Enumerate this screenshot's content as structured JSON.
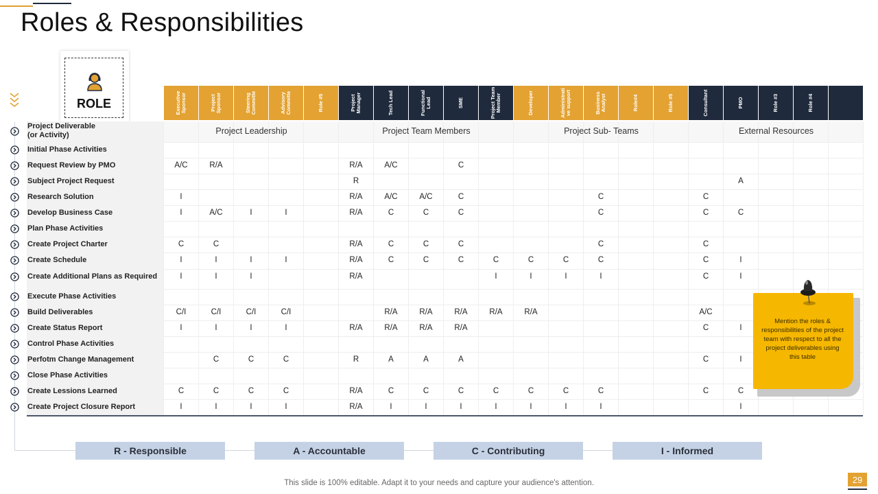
{
  "title": "Roles & Responsibilities",
  "role_label": "ROLE",
  "columns": [
    {
      "label": "Executive Sponsor",
      "color": "#e3a232"
    },
    {
      "label": "Project Sponsor",
      "color": "#e3a232"
    },
    {
      "label": "Steering Committe",
      "color": "#e3a232"
    },
    {
      "label": "Advisory Committe",
      "color": "#e3a232"
    },
    {
      "label": "Role #5",
      "color": "#e3a232"
    },
    {
      "label": "Project Manager",
      "color": "#1f2a3c"
    },
    {
      "label": "Tech Lead",
      "color": "#1f2a3c"
    },
    {
      "label": "Functional Lead",
      "color": "#1f2a3c"
    },
    {
      "label": "SME",
      "color": "#1f2a3c"
    },
    {
      "label": "Project Team Member",
      "color": "#1f2a3c"
    },
    {
      "label": "Developer",
      "color": "#e3a232"
    },
    {
      "label": "Administrati ve support",
      "color": "#e3a232"
    },
    {
      "label": "Business Analyst",
      "color": "#e3a232"
    },
    {
      "label": "Role#4",
      "color": "#e3a232"
    },
    {
      "label": "Role #5",
      "color": "#e3a232"
    },
    {
      "label": "Consultant",
      "color": "#1f2a3c"
    },
    {
      "label": "PMO",
      "color": "#1f2a3c"
    },
    {
      "label": "Role #3",
      "color": "#1f2a3c"
    },
    {
      "label": "Role #4",
      "color": "#1f2a3c"
    },
    {
      "label": "",
      "color": "#1f2a3c"
    }
  ],
  "groups": [
    {
      "label": "Project Leadership",
      "span": 5
    },
    {
      "label": "Project Team Members",
      "span": 5
    },
    {
      "label": "Project Sub- Teams",
      "span": 5
    },
    {
      "label": "External Resources",
      "span": 5
    }
  ],
  "first_row_label": "Project Deliverable\n(or Activity)",
  "rows": [
    {
      "label": "Initial Phase Activities",
      "cells": [
        "",
        "",
        "",
        "",
        "",
        "",
        "",
        "",
        "",
        "",
        "",
        "",
        "",
        "",
        "",
        "",
        "",
        "",
        "",
        ""
      ]
    },
    {
      "label": "Request Review by PMO",
      "cells": [
        "A/C",
        "R/A",
        "",
        "",
        "",
        "R/A",
        "A/C",
        "",
        "C",
        "",
        "",
        "",
        "",
        "",
        "",
        "",
        "",
        "",
        "",
        ""
      ]
    },
    {
      "label": "Subject Project Request",
      "cells": [
        "",
        "",
        "",
        "",
        "",
        "R",
        "",
        "",
        "",
        "",
        "",
        "",
        "",
        "",
        "",
        "",
        "A",
        "",
        "",
        ""
      ]
    },
    {
      "label": "Research Solution",
      "cells": [
        "I",
        "",
        "",
        "",
        "",
        "R/A",
        "A/C",
        "A/C",
        "C",
        "",
        "",
        "",
        "C",
        "",
        "",
        "C",
        "",
        "",
        "",
        ""
      ]
    },
    {
      "label": "Develop Business Case",
      "cells": [
        "I",
        "A/C",
        "I",
        "I",
        "",
        "R/A",
        "C",
        "C",
        "C",
        "",
        "",
        "",
        "C",
        "",
        "",
        "C",
        "C",
        "",
        "",
        ""
      ]
    },
    {
      "label": "Plan Phase Activities",
      "cells": [
        "",
        "",
        "",
        "",
        "",
        "",
        "",
        "",
        "",
        "",
        "",
        "",
        "",
        "",
        "",
        "",
        "",
        "",
        "",
        ""
      ]
    },
    {
      "label": "Create Project Charter",
      "cells": [
        "C",
        "C",
        "",
        "",
        "",
        "R/A",
        "C",
        "C",
        "C",
        "",
        "",
        "",
        "C",
        "",
        "",
        "C",
        "",
        "",
        "",
        ""
      ]
    },
    {
      "label": "Create Schedule",
      "cells": [
        "I",
        "I",
        "I",
        "I",
        "",
        "R/A",
        "C",
        "C",
        "C",
        "C",
        "C",
        "C",
        "C",
        "",
        "",
        "C",
        "I",
        "",
        "",
        ""
      ]
    },
    {
      "label": "Create Additional Plans as Required",
      "cells": [
        "I",
        "I",
        "I",
        "",
        "",
        "R/A",
        "",
        "",
        "",
        "I",
        "I",
        "I",
        "I",
        "",
        "",
        "C",
        "I",
        "",
        "",
        ""
      ]
    },
    {
      "label": "Execute Phase Activities",
      "cells": [
        "",
        "",
        "",
        "",
        "",
        "",
        "",
        "",
        "",
        "",
        "",
        "",
        "",
        "",
        "",
        "",
        "",
        "",
        "",
        ""
      ]
    },
    {
      "label": "Build Deliverables",
      "cells": [
        "C/I",
        "C/I",
        "C/I",
        "C/I",
        "",
        "",
        "R/A",
        "R/A",
        "R/A",
        "R/A",
        "R/A",
        "",
        "",
        "",
        "",
        "A/C",
        "",
        "",
        "",
        ""
      ]
    },
    {
      "label": "Create Status Report",
      "cells": [
        "I",
        "I",
        "I",
        "I",
        "",
        "R/A",
        "R/A",
        "R/A",
        "R/A",
        "",
        "",
        "",
        "",
        "",
        "",
        "C",
        "I",
        "",
        "",
        ""
      ]
    },
    {
      "label": "Control Phase Activities",
      "cells": [
        "",
        "",
        "",
        "",
        "",
        "",
        "",
        "",
        "",
        "",
        "",
        "",
        "",
        "",
        "",
        "",
        "",
        "",
        "",
        ""
      ]
    },
    {
      "label": "Perfotm Change Management",
      "cells": [
        "",
        "C",
        "C",
        "C",
        "",
        "R",
        "A",
        "A",
        "A",
        "",
        "",
        "",
        "",
        "",
        "",
        "C",
        "I",
        "",
        "",
        ""
      ]
    },
    {
      "label": "Close Phase Activities",
      "cells": [
        "",
        "",
        "",
        "",
        "",
        "",
        "",
        "",
        "",
        "",
        "",
        "",
        "",
        "",
        "",
        "",
        "",
        "",
        "",
        ""
      ]
    },
    {
      "label": "Create Lessions Learned",
      "cells": [
        "C",
        "C",
        "C",
        "C",
        "",
        "R/A",
        "C",
        "C",
        "C",
        "C",
        "C",
        "C",
        "C",
        "",
        "",
        "C",
        "C",
        "",
        "",
        ""
      ]
    },
    {
      "label": "Create Project Closure Report",
      "cells": [
        "I",
        "I",
        "I",
        "I",
        "",
        "R/A",
        "I",
        "I",
        "I",
        "I",
        "I",
        "I",
        "I",
        "",
        "",
        "",
        "I",
        "",
        "",
        ""
      ]
    }
  ],
  "legend": [
    "R - Responsible",
    "A - Accountable",
    "C - Contributing",
    "I - Informed"
  ],
  "note": "Mention the roles & responsibilities of the project team with respect to all the project deliverables using this table",
  "footer": "This slide is 100% editable. Adapt it to your needs and capture your audience's attention.",
  "page_number": "29",
  "colors": {
    "gold": "#e3a232",
    "navy": "#1f2a3c",
    "legend": "#c5d2e6",
    "note": "#f6b700"
  }
}
